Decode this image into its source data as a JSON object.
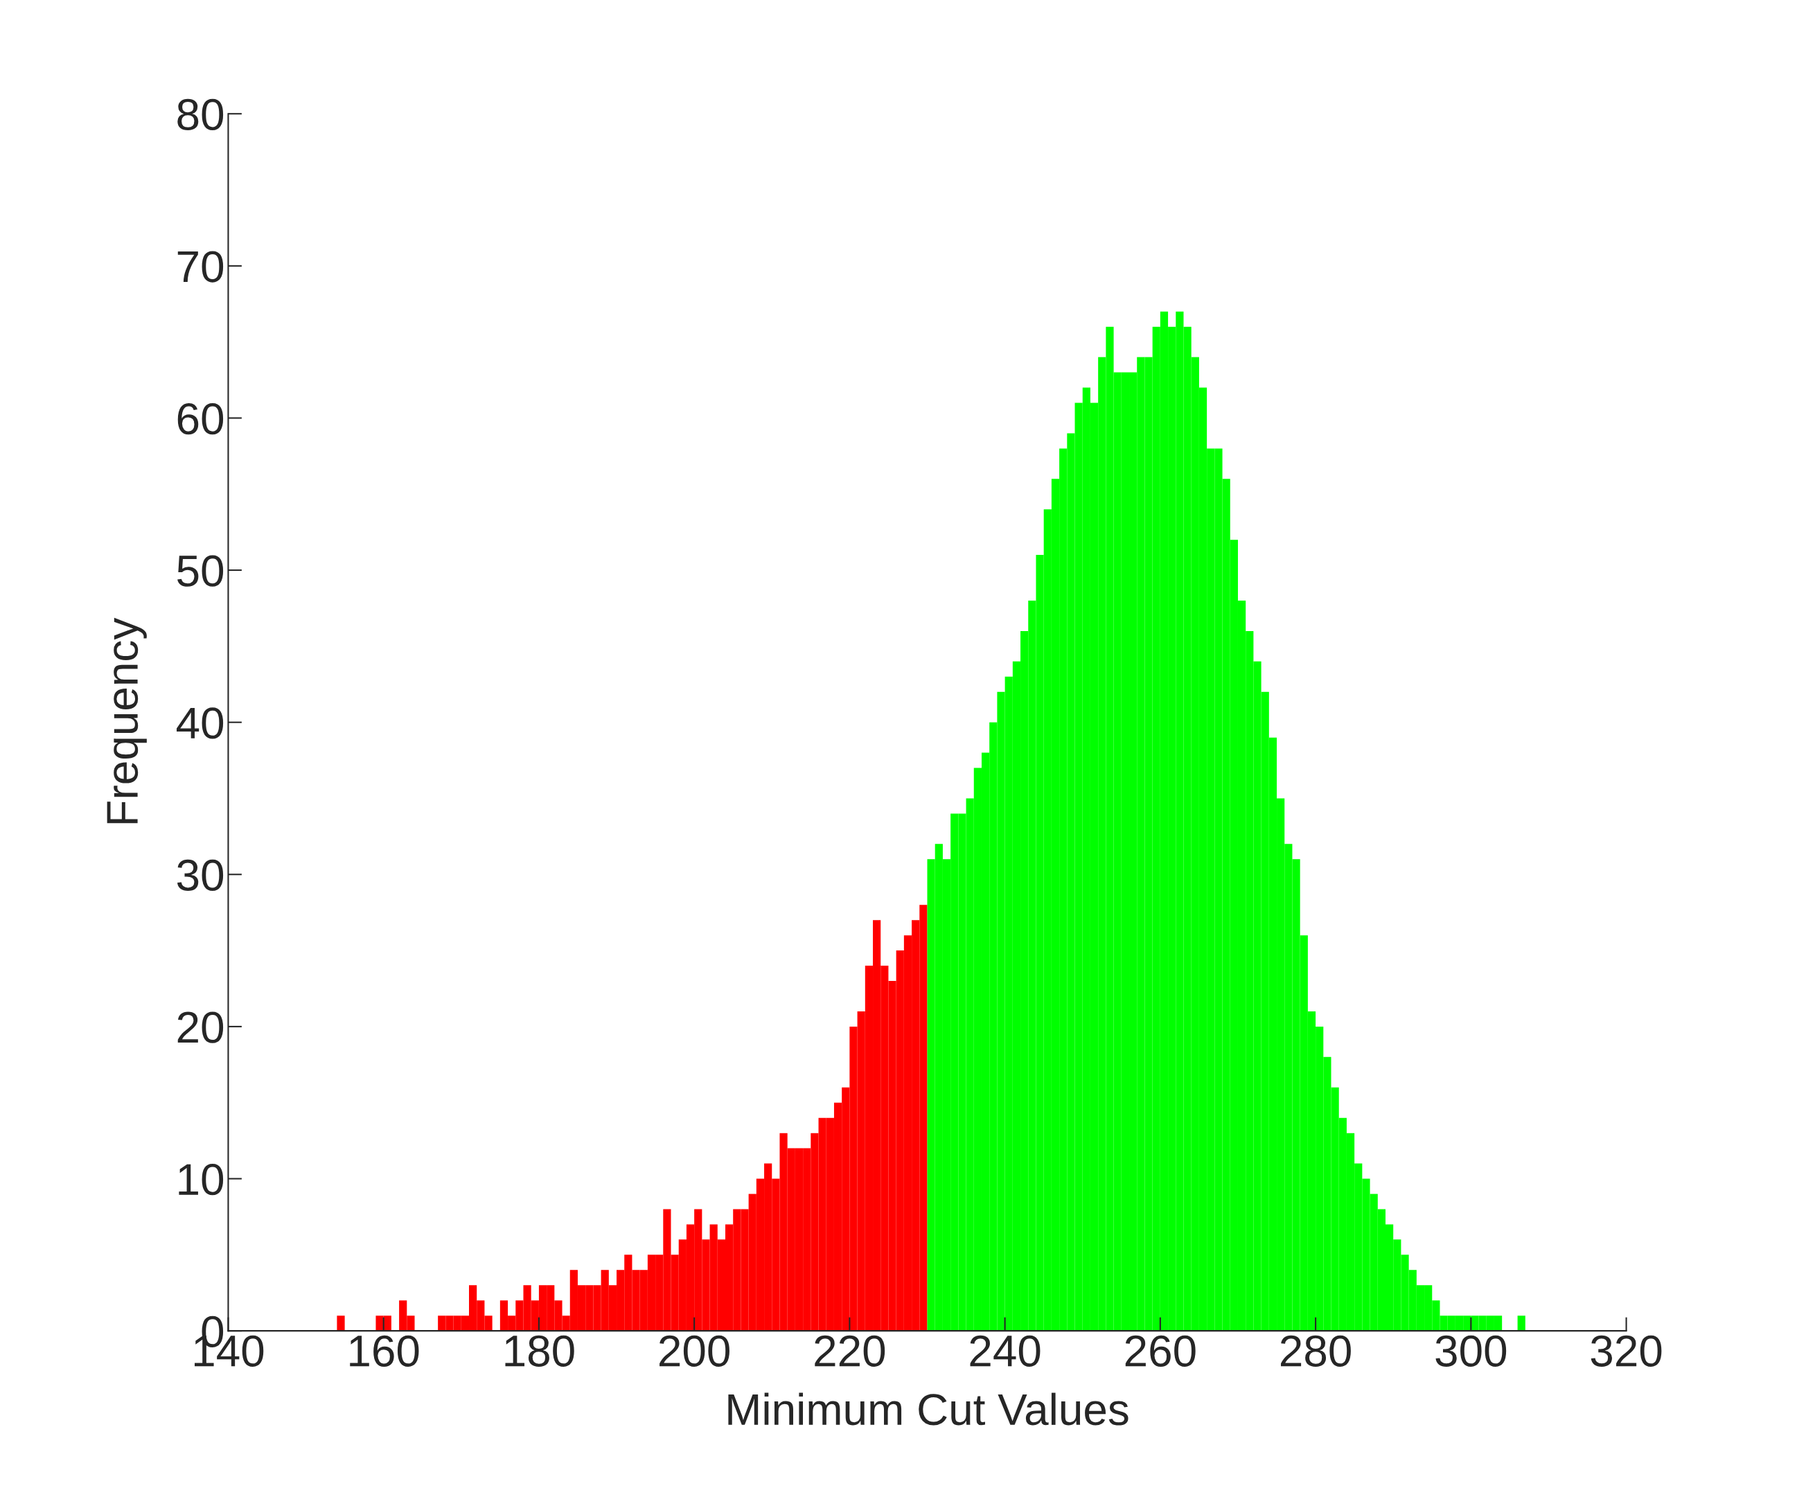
{
  "chart_data": {
    "type": "histogram",
    "xlabel": "Minimum Cut Values",
    "ylabel": "Frequency",
    "xlim": [
      140,
      320
    ],
    "xticks": [
      140,
      160,
      180,
      200,
      220,
      240,
      260,
      280,
      300,
      320
    ],
    "ylim": [
      0,
      80
    ],
    "yticks": [
      0,
      10,
      20,
      30,
      40,
      50,
      60,
      70,
      80
    ],
    "grid": false,
    "legend": false,
    "bins": [
      154,
      155,
      156,
      157,
      158,
      159,
      160,
      161,
      162,
      163,
      164,
      165,
      166,
      167,
      168,
      169,
      170,
      171,
      172,
      173,
      174,
      175,
      176,
      177,
      178,
      179,
      180,
      181,
      182,
      183,
      184,
      185,
      186,
      187,
      188,
      189,
      190,
      191,
      192,
      193,
      194,
      195,
      196,
      197,
      198,
      199,
      200,
      201,
      202,
      203,
      204,
      205,
      206,
      207,
      208,
      209,
      210,
      211,
      212,
      213,
      214,
      215,
      216,
      217,
      218,
      219,
      220,
      221,
      222,
      223,
      224,
      225,
      226,
      227,
      228,
      229,
      230,
      231,
      232,
      233,
      234,
      235,
      236,
      237,
      238,
      239,
      240,
      241,
      242,
      243,
      244,
      245,
      246,
      247,
      248,
      249,
      250,
      251,
      252,
      253,
      254,
      255,
      256,
      257,
      258,
      259,
      260,
      261,
      262,
      263,
      264,
      265,
      266,
      267,
      268,
      269,
      270,
      271,
      272,
      273,
      274,
      275,
      276,
      277,
      278,
      279,
      280,
      281,
      282,
      283,
      284,
      285,
      286,
      287,
      288,
      289,
      290,
      291,
      292,
      293,
      294,
      295,
      296,
      297,
      298,
      299,
      300,
      301,
      302,
      303,
      304,
      305,
      306,
      307,
      308
    ],
    "values": [
      1,
      0,
      0,
      0,
      0,
      1,
      1,
      0,
      2,
      1,
      0,
      0,
      0,
      1,
      1,
      1,
      1,
      3,
      2,
      1,
      0,
      2,
      1,
      2,
      3,
      2,
      3,
      3,
      2,
      1,
      4,
      3,
      3,
      3,
      4,
      3,
      4,
      5,
      4,
      4,
      5,
      5,
      8,
      5,
      6,
      7,
      8,
      6,
      7,
      6,
      7,
      8,
      8,
      9,
      10,
      11,
      10,
      13,
      12,
      12,
      12,
      13,
      14,
      14,
      15,
      16,
      20,
      21,
      24,
      27,
      24,
      23,
      25,
      26,
      27,
      28,
      31,
      32,
      31,
      34,
      34,
      35,
      37,
      38,
      40,
      42,
      43,
      44,
      46,
      48,
      51,
      54,
      56,
      58,
      59,
      61,
      62,
      61,
      64,
      66,
      63,
      63,
      63,
      64,
      64,
      66,
      67,
      66,
      67,
      66,
      64,
      62,
      58,
      58,
      56,
      52,
      48,
      46,
      44,
      42,
      39,
      35,
      32,
      31,
      26,
      21,
      20,
      18,
      16,
      14,
      13,
      11,
      10,
      9,
      8,
      7,
      6,
      5,
      4,
      3,
      3,
      2,
      1,
      1,
      1,
      1,
      1,
      1,
      1,
      1,
      0,
      0,
      1,
      0
    ],
    "colors": [
      "#ff0000",
      "#ff0000",
      "#ff0000",
      "#ff0000",
      "#ff0000",
      "#ff0000",
      "#ff0000",
      "#ff0000",
      "#ff0000",
      "#ff0000",
      "#ff0000",
      "#ff0000",
      "#ff0000",
      "#ff0000",
      "#ff0000",
      "#ff0000",
      "#ff0000",
      "#ff0000",
      "#ff0000",
      "#ff0000",
      "#ff0000",
      "#ff0000",
      "#ff0000",
      "#ff0000",
      "#ff0000",
      "#ff0000",
      "#ff0000",
      "#ff0000",
      "#ff0000",
      "#ff0000",
      "#ff0000",
      "#ff0000",
      "#ff0000",
      "#ff0000",
      "#ff0000",
      "#ff0000",
      "#ff0000",
      "#ff0000",
      "#ff0000",
      "#ff0000",
      "#ff0000",
      "#ff0000",
      "#ff0000",
      "#ff0000",
      "#ff0000",
      "#ff0000",
      "#ff0000",
      "#ff0000",
      "#ff0000",
      "#ff0000",
      "#ff0000",
      "#ff0000",
      "#ff0000",
      "#ff0000",
      "#ff0000",
      "#ff0000",
      "#ff0000",
      "#ff0000",
      "#ff0000",
      "#ff0000",
      "#ff0000",
      "#ff0000",
      "#ff0000",
      "#ff0000",
      "#ff0000",
      "#ff0000",
      "#ff0000",
      "#ff0000",
      "#ff0000",
      "#ff0000",
      "#ff0000",
      "#ff0000",
      "#ff0000",
      "#ff0000",
      "#ff0000",
      "#ff0000",
      "#00ff00",
      "#00ff00",
      "#00ff00",
      "#00ff00",
      "#00ff00",
      "#00ff00",
      "#00ff00",
      "#00ff00",
      "#00ff00",
      "#00ff00",
      "#00ff00",
      "#00ff00",
      "#00ff00",
      "#00ff00",
      "#00ff00",
      "#00ff00",
      "#00ff00",
      "#00ff00",
      "#00ff00",
      "#00ff00",
      "#00ff00",
      "#00ff00",
      "#00ff00",
      "#00ff00",
      "#00ff00",
      "#00ff00",
      "#00ff00",
      "#00ff00",
      "#00ff00",
      "#00ff00",
      "#00ff00",
      "#00ff00",
      "#00ff00",
      "#00ff00",
      "#00ff00",
      "#00ff00",
      "#00ff00",
      "#00ff00",
      "#00ff00",
      "#00ff00",
      "#00ff00",
      "#00ff00",
      "#00ff00",
      "#00ff00",
      "#00ff00",
      "#00ff00",
      "#00ff00",
      "#00ff00",
      "#00ff00",
      "#00ff00",
      "#00ff00",
      "#00ff00",
      "#00ff00",
      "#00ff00",
      "#00ff00",
      "#00ff00",
      "#00ff00",
      "#00ff00",
      "#00ff00",
      "#00ff00",
      "#00ff00",
      "#00ff00",
      "#00ff00",
      "#00ff00",
      "#00ff00",
      "#00ff00",
      "#00ff00",
      "#00ff00",
      "#00ff00",
      "#00ff00",
      "#00ff00",
      "#00ff00",
      "#00ff00",
      "#00ff00",
      "#00ff00",
      "#00ff00",
      "#00ff00",
      "#00ff00"
    ]
  }
}
